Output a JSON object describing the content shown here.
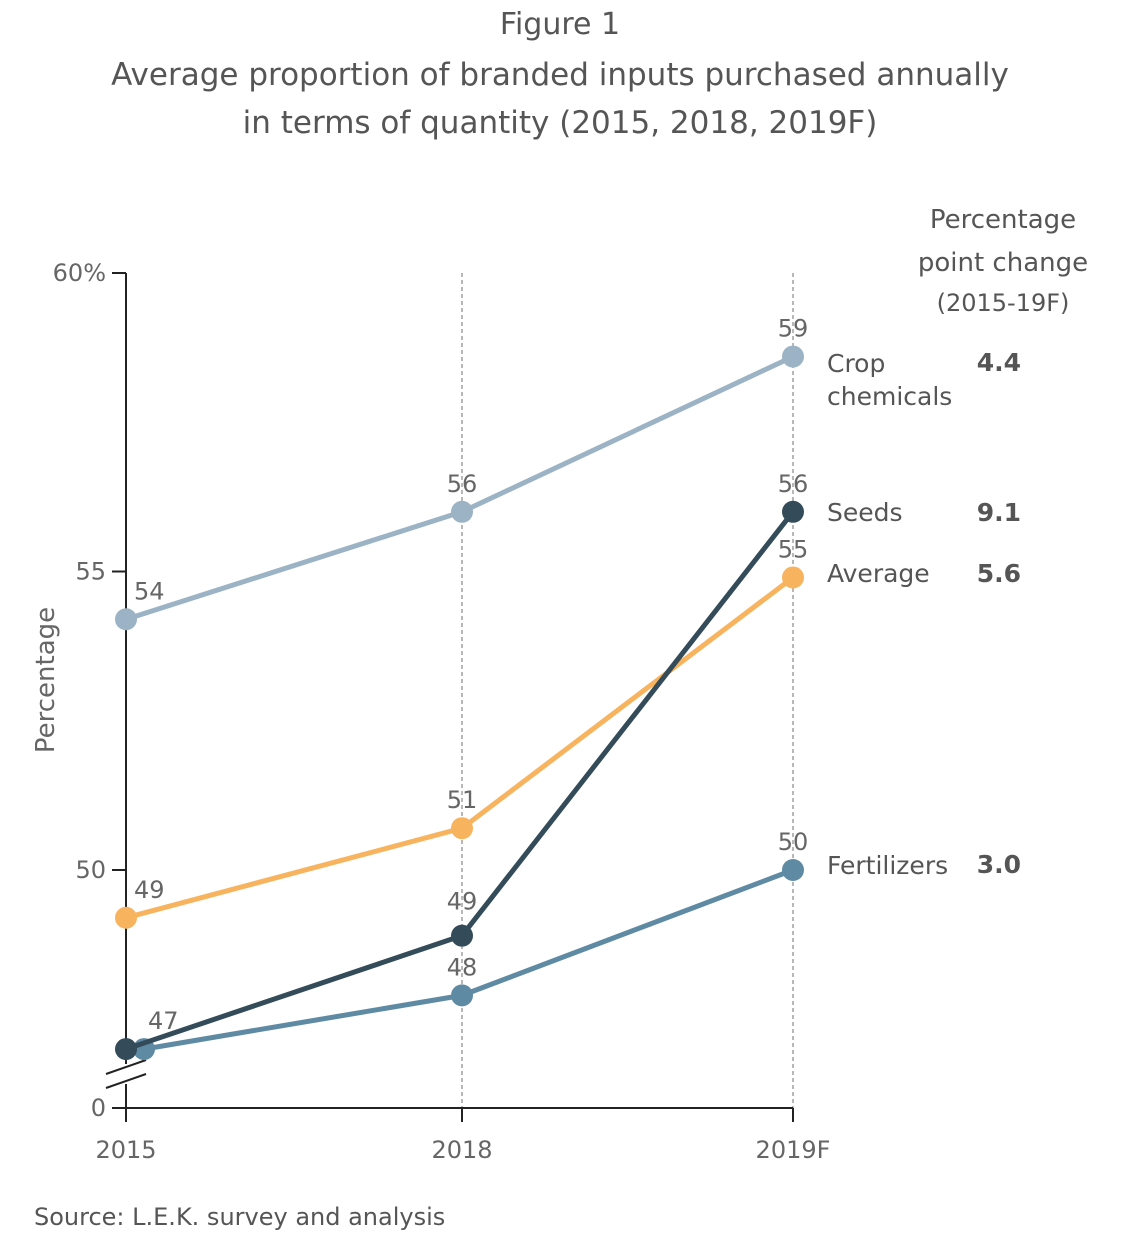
{
  "figure": {
    "label": "Figure 1",
    "title_lines": [
      "Average proportion of branded inputs purchased annually",
      "in terms of quantity (2015, 2018, 2019F)"
    ],
    "source": "Source: L.E.K. survey and analysis"
  },
  "chart_data": {
    "type": "line",
    "title": "Average proportion of branded inputs purchased annually in terms of quantity (2015, 2018, 2019F)",
    "categories": [
      "2015",
      "2018",
      "2019F"
    ],
    "ylabel": "Percentage",
    "y_ticks": [
      {
        "value": 60,
        "label": "60%"
      },
      {
        "value": 55,
        "label": "55"
      },
      {
        "value": 50,
        "label": "50"
      },
      {
        "value": 0,
        "label": "0"
      }
    ],
    "ylim": [
      46,
      60
    ],
    "y_axis_break": true,
    "grid": "vertical dashed lines at 2018 and 2019F",
    "series": [
      {
        "name": "Crop chemicals",
        "name_lines": [
          "Crop",
          "chemicals"
        ],
        "values": [
          54.2,
          56.0,
          58.6
        ],
        "labels": [
          "54",
          "56",
          "59"
        ],
        "change": "4.4",
        "color": "#9BB3C4"
      },
      {
        "name": "Seeds",
        "name_lines": [
          "Seeds"
        ],
        "values": [
          47.0,
          48.9,
          56.0
        ],
        "labels": [
          "",
          "49",
          "56"
        ],
        "change": "9.1",
        "color": "#344C5A"
      },
      {
        "name": "Average",
        "name_lines": [
          "Average"
        ],
        "values": [
          49.2,
          50.7,
          54.9
        ],
        "labels": [
          "49",
          "51",
          "55"
        ],
        "change": "5.6",
        "color": "#F8B35E"
      },
      {
        "name": "Fertilizers",
        "name_lines": [
          "Fertilizers"
        ],
        "values": [
          47.0,
          47.9,
          50.0
        ],
        "labels": [
          "47",
          "48",
          "50"
        ],
        "change": "3.0",
        "color": "#5E8AA3"
      }
    ],
    "change_header": [
      "Percentage",
      "point change",
      "(2015-19F)"
    ]
  }
}
